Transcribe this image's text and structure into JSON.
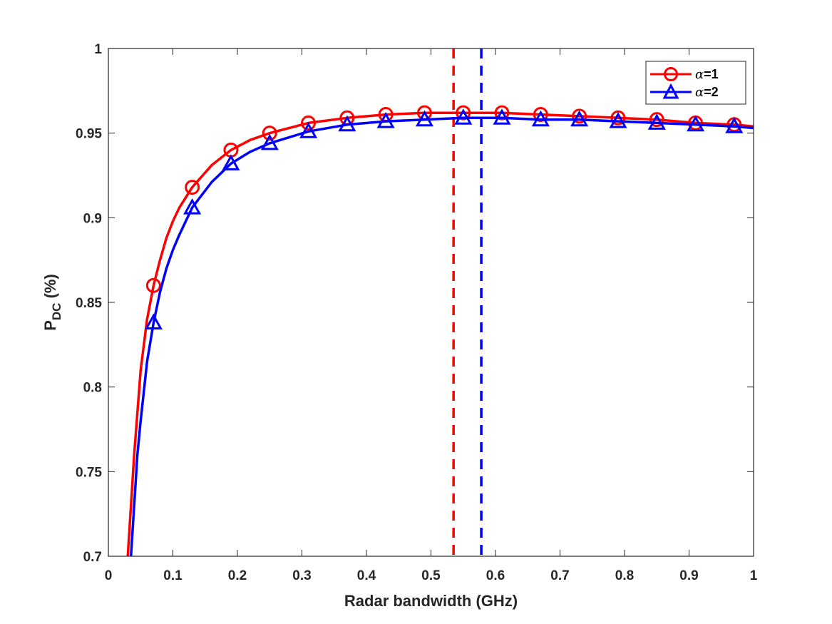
{
  "chart_data": {
    "type": "line",
    "xlabel": "Radar bandwidth (GHz)",
    "ylabel": {
      "main": "P",
      "sub": "DC",
      "suffix": " (%)"
    },
    "xlim": [
      0,
      1
    ],
    "ylim": [
      0.7,
      1
    ],
    "xticks": [
      0,
      0.1,
      0.2,
      0.3,
      0.4,
      0.5,
      0.6,
      0.7,
      0.8,
      0.9,
      1
    ],
    "xtick_labels": [
      "0",
      "0.1",
      "0.2",
      "0.3",
      "0.4",
      "0.5",
      "0.6",
      "0.7",
      "0.8",
      "0.9",
      "1"
    ],
    "yticks": [
      0.7,
      0.75,
      0.8,
      0.85,
      0.9,
      0.95,
      1
    ],
    "ytick_labels": [
      "0.7",
      "0.75",
      "0.8",
      "0.85",
      "0.9",
      "0.95",
      "1"
    ],
    "grid": false,
    "legend_position": "top-right",
    "series": [
      {
        "name": "α=1",
        "legend_symbol": "α",
        "legend_value": "=1",
        "color": "#ff0000",
        "marker": "circle",
        "line": [
          [
            0.03,
            0.7
          ],
          [
            0.04,
            0.76
          ],
          [
            0.05,
            0.81
          ],
          [
            0.06,
            0.84
          ],
          [
            0.07,
            0.86
          ],
          [
            0.08,
            0.875
          ],
          [
            0.09,
            0.888
          ],
          [
            0.1,
            0.898
          ],
          [
            0.11,
            0.906
          ],
          [
            0.13,
            0.918
          ],
          [
            0.16,
            0.931
          ],
          [
            0.19,
            0.94
          ],
          [
            0.22,
            0.946
          ],
          [
            0.25,
            0.95
          ],
          [
            0.31,
            0.956
          ],
          [
            0.37,
            0.959
          ],
          [
            0.43,
            0.961
          ],
          [
            0.49,
            0.962
          ],
          [
            0.55,
            0.962
          ],
          [
            0.61,
            0.962
          ],
          [
            0.67,
            0.961
          ],
          [
            0.73,
            0.96
          ],
          [
            0.79,
            0.959
          ],
          [
            0.85,
            0.958
          ],
          [
            0.91,
            0.956
          ],
          [
            0.97,
            0.955
          ],
          [
            1.0,
            0.954
          ]
        ],
        "markers": [
          [
            0.07,
            0.86
          ],
          [
            0.13,
            0.918
          ],
          [
            0.19,
            0.94
          ],
          [
            0.25,
            0.95
          ],
          [
            0.31,
            0.956
          ],
          [
            0.37,
            0.959
          ],
          [
            0.43,
            0.961
          ],
          [
            0.49,
            0.962
          ],
          [
            0.55,
            0.962
          ],
          [
            0.61,
            0.962
          ],
          [
            0.67,
            0.961
          ],
          [
            0.73,
            0.96
          ],
          [
            0.79,
            0.959
          ],
          [
            0.85,
            0.958
          ],
          [
            0.91,
            0.956
          ],
          [
            0.97,
            0.955
          ]
        ],
        "vline_x": 0.535
      },
      {
        "name": "α=2",
        "legend_symbol": "α",
        "legend_value": "=2",
        "color": "#0000ff",
        "marker": "triangle",
        "line": [
          [
            0.035,
            0.7
          ],
          [
            0.045,
            0.76
          ],
          [
            0.05,
            0.78
          ],
          [
            0.06,
            0.815
          ],
          [
            0.07,
            0.838
          ],
          [
            0.08,
            0.856
          ],
          [
            0.09,
            0.87
          ],
          [
            0.1,
            0.881
          ],
          [
            0.11,
            0.89
          ],
          [
            0.13,
            0.906
          ],
          [
            0.16,
            0.921
          ],
          [
            0.19,
            0.932
          ],
          [
            0.22,
            0.939
          ],
          [
            0.25,
            0.944
          ],
          [
            0.31,
            0.951
          ],
          [
            0.37,
            0.955
          ],
          [
            0.43,
            0.957
          ],
          [
            0.49,
            0.958
          ],
          [
            0.55,
            0.959
          ],
          [
            0.61,
            0.959
          ],
          [
            0.67,
            0.958
          ],
          [
            0.73,
            0.958
          ],
          [
            0.79,
            0.957
          ],
          [
            0.85,
            0.956
          ],
          [
            0.91,
            0.955
          ],
          [
            0.97,
            0.954
          ],
          [
            1.0,
            0.953
          ]
        ],
        "markers": [
          [
            0.07,
            0.838
          ],
          [
            0.13,
            0.906
          ],
          [
            0.19,
            0.932
          ],
          [
            0.25,
            0.944
          ],
          [
            0.31,
            0.951
          ],
          [
            0.37,
            0.955
          ],
          [
            0.43,
            0.957
          ],
          [
            0.49,
            0.958
          ],
          [
            0.55,
            0.959
          ],
          [
            0.61,
            0.959
          ],
          [
            0.67,
            0.958
          ],
          [
            0.73,
            0.958
          ],
          [
            0.79,
            0.957
          ],
          [
            0.85,
            0.956
          ],
          [
            0.91,
            0.955
          ],
          [
            0.97,
            0.954
          ]
        ],
        "vline_x": 0.578
      }
    ]
  }
}
